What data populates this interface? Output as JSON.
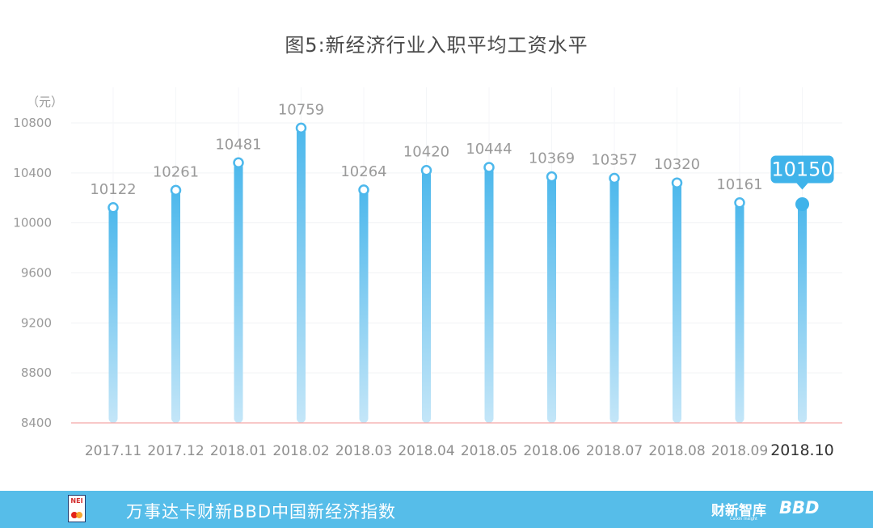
{
  "chart_data": {
    "type": "bar",
    "title": "图5:新经济行业入职平均工资水平",
    "unit_label": "（元）",
    "categories": [
      "2017.11",
      "2017.12",
      "2018.01",
      "2018.02",
      "2018.03",
      "2018.04",
      "2018.05",
      "2018.06",
      "2018.07",
      "2018.08",
      "2018.09",
      "2018.10"
    ],
    "values": [
      10122,
      10261,
      10481,
      10759,
      10264,
      10420,
      10444,
      10369,
      10357,
      10320,
      10161,
      10150
    ],
    "y_ticks": [
      8400,
      8800,
      9200,
      9600,
      10000,
      10400,
      10800
    ],
    "ylim": [
      8400,
      10800
    ],
    "highlight_index": 11,
    "grid": true,
    "colors": {
      "bar_top": "#4db8ec",
      "bar_bottom": "#c4e6f8",
      "highlight": "#3fb3ea",
      "baseline": "#f4a6a6",
      "label": "#9a9a9a"
    }
  },
  "footer": {
    "logo_text": "NEI",
    "text": "万事达卡财新BBD中国新经济指数",
    "brand_caixin": "财新智库",
    "brand_caixin_sub": "Caixin Insight",
    "brand_bbd": "BBD",
    "background": "#56bde9"
  }
}
